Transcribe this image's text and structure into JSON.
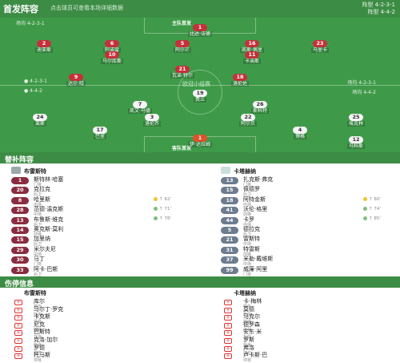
{
  "header": {
    "title": "首发阵容",
    "subtitle": "点击球员可查看本场详细数据",
    "home_formation": "阵型 4-2-3-1",
    "away_formation": "阵型 4-4-2"
  },
  "pitch": {
    "home_meta": "场均 4-2-3-1",
    "away_meta": "场均 4-4-2",
    "top_label": "主队首发",
    "bottom_label": "客队首发",
    "center_label": "欧冠小组赛",
    "goalkeeper_top": {
      "num": "1",
      "name": "比达·法德"
    },
    "goalkeeper_bottom": {
      "num": "1",
      "name": "伊·达拉姆"
    }
  },
  "home_players": [
    {
      "num": "2",
      "name": "迪亚斯",
      "row": 1,
      "col": 1
    },
    {
      "num": "6",
      "name": "阿诺雷",
      "row": 1,
      "col": 2
    },
    {
      "num": "5",
      "name": "阿尔芒",
      "row": 1,
      "col": 3
    },
    {
      "num": "16",
      "name": "凯斯·佩里",
      "row": 1,
      "col": 4
    },
    {
      "num": "23",
      "name": "马里卡",
      "row": 1,
      "col": 5
    },
    {
      "num": "10",
      "name": "马尔库斯",
      "row": 2,
      "col": 2
    },
    {
      "num": "11",
      "name": "卡诺斯",
      "row": 2,
      "col": 4
    },
    {
      "num": "21",
      "name": "瓦诺·特尔",
      "row": 3,
      "col": 3
    },
    {
      "num": "9",
      "name": "达尔·哈",
      "row": 4,
      "col": 2
    },
    {
      "num": "18",
      "name": "洛伦佐",
      "row": 4,
      "col": 4
    }
  ],
  "away_players": [
    {
      "num": "19",
      "name": "费兰"
    },
    {
      "num": "7",
      "name": "凯文·马德"
    },
    {
      "num": "26",
      "name": "斯科特"
    },
    {
      "num": "24",
      "name": "莱斯"
    },
    {
      "num": "3",
      "name": "洛伦齐"
    },
    {
      "num": "22",
      "name": "阿尔贝"
    },
    {
      "num": "25",
      "name": "埃克林"
    },
    {
      "num": "17",
      "name": "巴里"
    },
    {
      "num": "4",
      "name": "博格"
    },
    {
      "num": "12",
      "name": "马科斯"
    }
  ],
  "subs_section": {
    "title": "替补阵容"
  },
  "subs_home": {
    "team": "布雷斯特",
    "players": [
      {
        "num": "1",
        "name": "斯特林·哈塞",
        "pos": "门将"
      },
      {
        "num": "20",
        "name": "克拉克",
        "pos": "后卫"
      },
      {
        "num": "8",
        "name": "哈里斯",
        "pos": "中场"
      },
      {
        "num": "28",
        "name": "范德·温克斯",
        "pos": "中场"
      },
      {
        "num": "13",
        "name": "布鲁斯·维克",
        "pos": "后卫"
      },
      {
        "num": "14",
        "name": "奥克斯·莫利",
        "pos": "前锋"
      },
      {
        "num": "15",
        "name": "加里纳",
        "pos": "后卫"
      },
      {
        "num": "29",
        "name": "米尔夫尼",
        "pos": "中场"
      },
      {
        "num": "30",
        "name": "马丁",
        "pos": "门将"
      },
      {
        "num": "33",
        "name": "阿卡·巴斯",
        "pos": "后卫"
      }
    ],
    "events": [
      "↑ 62'",
      "↑ 71'",
      "↑ 78'"
    ]
  },
  "subs_away": {
    "team": "卡塔赫纳",
    "players": [
      {
        "num": "13",
        "name": "扎克斯·弗克",
        "pos": "门将"
      },
      {
        "num": "15",
        "name": "佩德罗",
        "pos": "后卫"
      },
      {
        "num": "18",
        "name": "阿特金斯",
        "pos": "中场"
      },
      {
        "num": "41",
        "name": "沃伦·格里",
        "pos": "前锋"
      },
      {
        "num": "44",
        "name": "卡罗",
        "pos": "中场"
      },
      {
        "num": "5",
        "name": "德拉克",
        "pos": "后卫"
      },
      {
        "num": "21",
        "name": "雷斯特",
        "pos": "中场"
      },
      {
        "num": "31",
        "name": "特雷斯",
        "pos": "前锋"
      },
      {
        "num": "37",
        "name": "米勒·戴维斯",
        "pos": "中场"
      },
      {
        "num": "99",
        "name": "威廉·阿里",
        "pos": "门将"
      }
    ],
    "events": [
      "↑ 60'",
      "↑ 74'",
      "↑ 85'"
    ]
  },
  "injury_section": {
    "title": "伤停信息"
  },
  "injury_home": {
    "team": "布雷斯特",
    "players": [
      {
        "name": "库尔",
        "reason": "膝伤"
      },
      {
        "name": "马尔丁·罗克",
        "reason": "肌肉"
      },
      {
        "name": "卡克斯",
        "reason": "停赛"
      },
      {
        "name": "尼克",
        "reason": "脚踝"
      },
      {
        "name": "巴斯特",
        "reason": "背伤"
      },
      {
        "name": "克洛·加尔",
        "reason": "伤病"
      },
      {
        "name": "罗德",
        "reason": "膝伤"
      },
      {
        "name": "托马斯",
        "reason": "停赛"
      }
    ]
  },
  "injury_away": {
    "team": "卡塔赫纳",
    "players": [
      {
        "name": "卡·梅林",
        "reason": "膝伤"
      },
      {
        "name": "莫德",
        "reason": "肌肉"
      },
      {
        "name": "马克尔",
        "reason": "脚踝"
      },
      {
        "name": "德罗森",
        "reason": "停赛"
      },
      {
        "name": "安东·米",
        "reason": "背伤"
      },
      {
        "name": "罗斯",
        "reason": "伤病"
      },
      {
        "name": "弗洛",
        "reason": "膝伤"
      },
      {
        "name": "卢卡斯·巴",
        "reason": "停赛"
      }
    ]
  },
  "colors": {
    "green": "#3d8c45",
    "pitch": "#3e9a48",
    "home": "#c6303a",
    "away": "#f4f4f4",
    "sub_home": "#8a2c3f"
  }
}
